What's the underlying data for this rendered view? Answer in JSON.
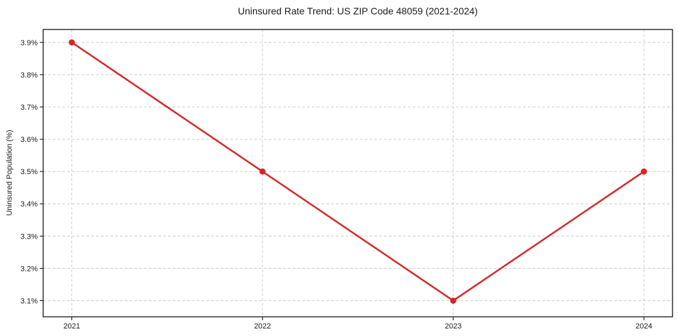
{
  "page": {
    "title": "Uninsured Rate Trend: US ZIP Code 48059 (2021-2024)"
  },
  "chart_data": {
    "type": "line",
    "title": "Uninsured Rate Trend: US ZIP Code 48059 (2021-2024)",
    "xlabel": "",
    "ylabel": "Uninsured Population (%)",
    "x": [
      2021,
      2022,
      2023,
      2024
    ],
    "series": [
      {
        "name": "Uninsured Rate",
        "values": [
          3.9,
          3.5,
          3.1,
          3.5
        ]
      }
    ],
    "x_tick_labels": [
      "2021",
      "2022",
      "2023",
      "2024"
    ],
    "y_ticks": [
      3.1,
      3.2,
      3.3,
      3.4,
      3.5,
      3.6,
      3.7,
      3.8,
      3.9
    ],
    "y_tick_labels": [
      "3.1%",
      "3.2%",
      "3.3%",
      "3.4%",
      "3.5%",
      "3.6%",
      "3.7%",
      "3.8%",
      "3.9%"
    ],
    "xlim": [
      2020.85,
      2024.15
    ],
    "ylim": [
      3.05,
      3.94
    ],
    "grid": true,
    "grid_style": "dashed",
    "legend_position": "none",
    "line_color": "#d62728",
    "marker": "circle",
    "marker_color": "#d62728",
    "grid_color": "#cccccc",
    "axis_color": "#000000",
    "text_color": "#1a1a1a",
    "background_color": "#ffffff"
  }
}
